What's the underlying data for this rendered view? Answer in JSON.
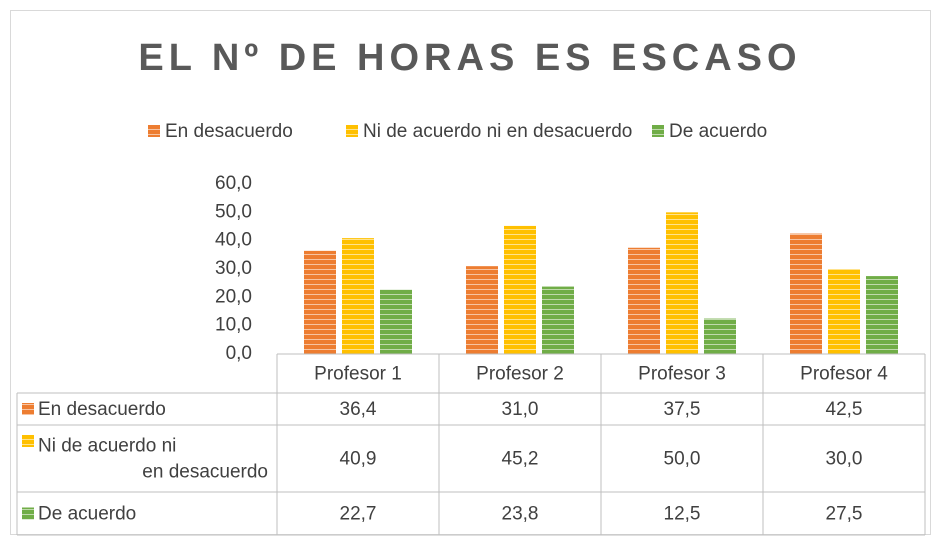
{
  "chart_data": {
    "type": "bar",
    "title": "EL Nº DE HORAS ES ESCASO",
    "categories": [
      "Profesor 1",
      "Profesor 2",
      "Profesor 3",
      "Profesor 4"
    ],
    "series": [
      {
        "name": "En desacuerdo",
        "color": "#ED7D31",
        "values": [
          36.4,
          31.0,
          37.5,
          42.5
        ],
        "value_labels": [
          "36,4",
          "31,0",
          "37,5",
          "42,5"
        ]
      },
      {
        "name": "Ni de acuerdo ni en desacuerdo",
        "color": "#FFC000",
        "values": [
          40.9,
          45.2,
          50.0,
          30.0
        ],
        "value_labels": [
          "40,9",
          "45,2",
          "50,0",
          "30,0"
        ]
      },
      {
        "name": "De acuerdo",
        "color": "#70AD47",
        "values": [
          22.7,
          23.8,
          12.5,
          27.5
        ],
        "value_labels": [
          "22,7",
          "23,8",
          "12,5",
          "27,5"
        ]
      }
    ],
    "ylim": [
      0,
      60
    ],
    "yticks": [
      {
        "value": 0,
        "label": "0,0"
      },
      {
        "value": 10,
        "label": "10,0"
      },
      {
        "value": 20,
        "label": "20,0"
      },
      {
        "value": 30,
        "label": "30,0"
      },
      {
        "value": 40,
        "label": "40,0"
      },
      {
        "value": 50,
        "label": "50,0"
      },
      {
        "value": 60,
        "label": "60,0"
      }
    ],
    "legend": "top",
    "data_table": true
  }
}
